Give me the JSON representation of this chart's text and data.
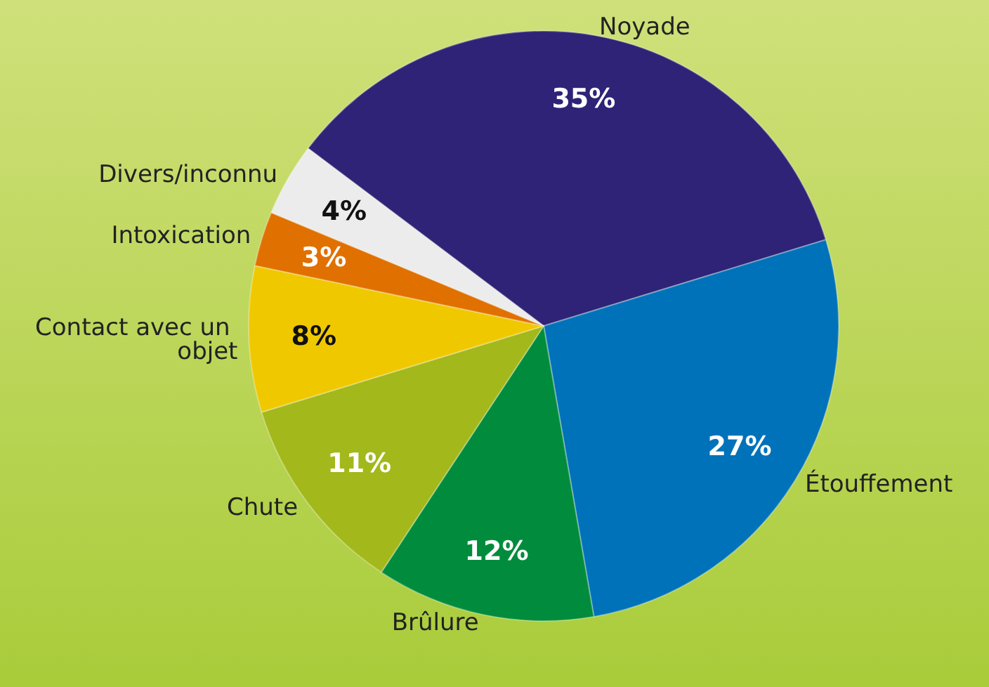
{
  "chart_data": {
    "type": "pie",
    "categories": [
      "Noyade",
      "Étouffement",
      "Brûlure",
      "Chute",
      "Contact avec un objet",
      "Intoxication",
      "Divers/inconnu"
    ],
    "values": [
      35,
      27,
      12,
      11,
      8,
      3,
      4
    ],
    "value_labels": [
      "35%",
      "27%",
      "12%",
      "11%",
      "8%",
      "3%",
      "4%"
    ],
    "colors": [
      "#2e2377",
      "#0072b9",
      "#008c3c",
      "#a3b81a",
      "#f0c800",
      "#e07000",
      "#ececec"
    ],
    "legend": false
  }
}
